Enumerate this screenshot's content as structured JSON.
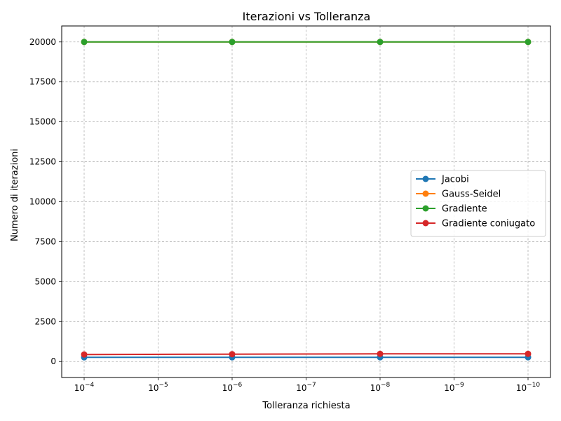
{
  "chart_data": {
    "type": "line",
    "title": "Iterazioni vs Tolleranza",
    "xlabel": "Tolleranza richiesta",
    "ylabel": "Numero di iterazioni",
    "x": [
      0.0001,
      1e-06,
      1e-08,
      1e-10
    ],
    "x_scale": "log",
    "x_inverted": true,
    "x_ticks": [
      {
        "value": 0.0001,
        "base": "10",
        "exp": "−4"
      },
      {
        "value": 1e-05,
        "base": "10",
        "exp": "−5"
      },
      {
        "value": 1e-06,
        "base": "10",
        "exp": "−6"
      },
      {
        "value": 1e-07,
        "base": "10",
        "exp": "−7"
      },
      {
        "value": 1e-08,
        "base": "10",
        "exp": "−8"
      },
      {
        "value": 1e-09,
        "base": "10",
        "exp": "−9"
      },
      {
        "value": 1e-10,
        "base": "10",
        "exp": "−10"
      }
    ],
    "y_ticks": [
      {
        "value": 0,
        "label": "0"
      },
      {
        "value": 2500,
        "label": "2500"
      },
      {
        "value": 5000,
        "label": "5000"
      },
      {
        "value": 7500,
        "label": "7500"
      },
      {
        "value": 10000,
        "label": "10000"
      },
      {
        "value": 12500,
        "label": "12500"
      },
      {
        "value": 15000,
        "label": "15000"
      },
      {
        "value": 17500,
        "label": "17500"
      },
      {
        "value": 20000,
        "label": "20000"
      }
    ],
    "ylim": [
      -1000,
      21000
    ],
    "grid": true,
    "legend_position": "center-right",
    "series": [
      {
        "name": "Jacobi",
        "color": "#1f77b4",
        "values": [
          260,
          262,
          263,
          264
        ]
      },
      {
        "name": "Gauss-Seidel",
        "color": "#ff7f0e",
        "values": [
          20000,
          20000,
          20000,
          20000
        ]
      },
      {
        "name": "Gradiente",
        "color": "#2ca02c",
        "values": [
          20000,
          20000,
          20000,
          20000
        ]
      },
      {
        "name": "Gradiente coniugato",
        "color": "#d62728",
        "values": [
          440,
          460,
          480,
          480
        ]
      }
    ]
  }
}
